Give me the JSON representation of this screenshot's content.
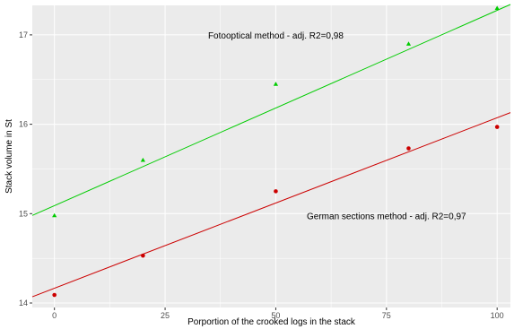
{
  "chart_data": {
    "type": "scatter",
    "xlabel": "Porportion of the crooked logs in the stack",
    "ylabel": "Stack volume in St",
    "xlim": [
      -5,
      103
    ],
    "ylim": [
      13.95,
      17.33
    ],
    "x_ticks": [
      0,
      25,
      50,
      75,
      100
    ],
    "y_ticks": [
      14,
      15,
      16,
      17
    ],
    "grid": true,
    "legend": "none",
    "background": "#ebebeb",
    "gridline_color": "#ffffff",
    "series": [
      {
        "color": "#00cc00",
        "marker": "triangle",
        "points": [
          {
            "x": 0,
            "y": 14.98
          },
          {
            "x": 20,
            "y": 15.6
          },
          {
            "x": 50,
            "y": 16.45
          },
          {
            "x": 80,
            "y": 16.9
          },
          {
            "x": 100,
            "y": 17.3
          }
        ],
        "trend_line": {
          "x": [
            -5,
            103
          ],
          "y": [
            14.98,
            17.34
          ]
        }
      },
      {
        "color": "#cc0000",
        "marker": "circle",
        "points": [
          {
            "x": 0,
            "y": 14.09
          },
          {
            "x": 20,
            "y": 14.53
          },
          {
            "x": 50,
            "y": 15.25
          },
          {
            "x": 80,
            "y": 15.73
          },
          {
            "x": 100,
            "y": 15.97
          }
        ],
        "trend_line": {
          "x": [
            -5,
            103
          ],
          "y": [
            14.07,
            16.13
          ]
        }
      }
    ],
    "annotations": [
      {
        "text": "Fotooptical method - adj. R2=0,98",
        "x": 50,
        "y": 17.0
      },
      {
        "text": "German sections method - adj. R2=0,97",
        "x": 75,
        "y": 14.98
      }
    ]
  }
}
